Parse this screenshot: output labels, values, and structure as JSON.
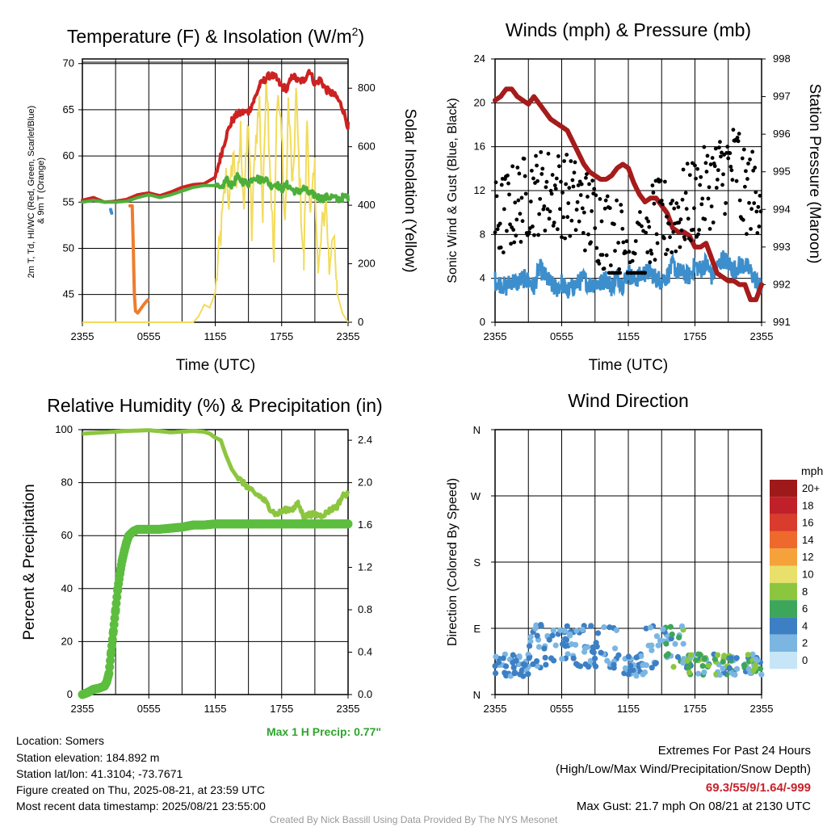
{
  "charts": {
    "temp": {
      "title": "Temperature (F) & Insolation (W/m²)",
      "ylabel_line1": "2m T, Td, HI/WC (Red, Green, Scarlet/Blue)",
      "ylabel_line2": "& 9m T (Orange)",
      "y2label": "Solar Insolation (Yellow)",
      "xlabel": "Time (UTC)"
    },
    "wind": {
      "title": "Winds (mph) & Pressure (mb)",
      "ylabel": "Sonic Wind & Gust (Blue, Black)",
      "y2label": "Station Pressure (Maroon)",
      "xlabel": "Time (UTC)"
    },
    "rh": {
      "title": "Relative Humidity (%) & Precipitation (in)",
      "ylabel": "Percent & Precipitation",
      "max_precip": "Max 1 H Precip: 0.77\""
    },
    "dir": {
      "title": "Wind Direction",
      "ylabel": "Direction (Colored By Speed)",
      "legend_title": "mph"
    }
  },
  "info": {
    "location": "Location: Somers",
    "elevation": "Station elevation: 184.892 m",
    "latlon": "Station lat/lon: 41.3104; -73.7671",
    "created": "Figure created on Thu, 2025-08-21, at 23:59 UTC",
    "recent": "Most recent data timestamp: 2025/08/21 23:55:00"
  },
  "extremes": {
    "title": "Extremes For Past 24 Hours",
    "subtitle": "(High/Low/Max Wind/Precipitation/Snow Depth)",
    "values": "69.3/55/9/1.64/-999",
    "gust": "Max Gust: 21.7 mph On 08/21 at 2130 UTC"
  },
  "credit": "Created By Nick Bassill Using Data Provided By The NYS Mesonet",
  "colors": {
    "temp": "#cc2222",
    "dewpoint": "#4caf3a",
    "heatindex_blue": "#3d8ecc",
    "temp9m": "#ee7d2d",
    "solar": "#f2dc5a",
    "sonic": "#3d8ecc",
    "gust": "#000000",
    "pressure": "#a61b1b",
    "rh": "#8cc63f",
    "precip": "#5cbd3f",
    "grid": "#000000"
  },
  "chart_data": [
    {
      "id": "temp",
      "type": "line",
      "x_ticks": [
        "2355",
        "0555",
        "1155",
        "1755",
        "2355"
      ],
      "x_range_hours": [
        0,
        24
      ],
      "ylim": [
        42,
        70.5
      ],
      "y_ticks": [
        45,
        50,
        55,
        60,
        65,
        70
      ],
      "y2lim": [
        0,
        900
      ],
      "y2_ticks": [
        0,
        200,
        400,
        600,
        800
      ],
      "series": [
        {
          "key": "temp",
          "x": [
            0,
            1,
            2,
            3,
            4,
            5,
            6,
            7,
            8,
            9,
            10,
            11,
            12,
            12.5,
            13,
            13.5,
            14,
            14.5,
            15,
            15.5,
            16,
            16.5,
            17,
            17.5,
            18,
            18.5,
            19,
            19.5,
            20,
            20.5,
            21,
            21.5,
            22,
            22.5,
            23,
            23.5,
            24
          ],
          "y": [
            55.2,
            55.5,
            55,
            55.1,
            55.3,
            55.8,
            56,
            55.7,
            56.1,
            56.6,
            56.9,
            57,
            57.7,
            60,
            62.2,
            63.8,
            64.5,
            64.7,
            64.8,
            66,
            67.6,
            68.3,
            68.8,
            68.4,
            67.5,
            67.3,
            68.7,
            68.1,
            68.2,
            69.3,
            67.8,
            68.3,
            67.2,
            66.8,
            66.3,
            65.2,
            63.2
          ]
        },
        {
          "key": "dewpoint",
          "x": [
            0,
            1,
            2,
            3,
            4,
            5,
            6,
            7,
            8,
            9,
            10,
            11,
            12,
            12.5,
            13,
            13.5,
            14,
            14.5,
            15,
            15.5,
            16,
            16.5,
            17,
            17.5,
            18,
            18.5,
            19,
            19.5,
            20,
            20.5,
            21,
            21.5,
            22,
            22.5,
            23,
            23.5,
            24
          ],
          "y": [
            55,
            55.2,
            55,
            55,
            55.1,
            55.5,
            55.8,
            55.5,
            55.8,
            56.2,
            56.6,
            56.8,
            56.8,
            56.3,
            57.5,
            56.8,
            57.7,
            57.2,
            57,
            57.8,
            57.4,
            57.6,
            56.8,
            57,
            56.4,
            56.9,
            56.3,
            56.1,
            56.5,
            55.9,
            55.8,
            55.4,
            55.5,
            55.6,
            55.3,
            55.5,
            55.6
          ]
        },
        {
          "key": "heatindex_blue",
          "x": [
            2.55,
            2.6,
            2.65
          ],
          "y": [
            54.2,
            54,
            53.8
          ]
        },
        {
          "key": "temp9m",
          "x": [
            4.3,
            4.4,
            4.5,
            4.6,
            4.7,
            4.8,
            5.0,
            5.3,
            5.6,
            5.9
          ],
          "y": [
            54.6,
            54.6,
            54.6,
            50,
            45,
            43.2,
            43,
            43.5,
            44,
            44.4
          ]
        }
      ],
      "solar": {
        "x": [
          0,
          10,
          10.5,
          11,
          11.5,
          12,
          12.5,
          13,
          13.3,
          13.6,
          14,
          14.3,
          14.6,
          15,
          15.3,
          15.6,
          16,
          16.3,
          16.6,
          17,
          17.3,
          17.6,
          18,
          18.3,
          18.6,
          19,
          19.3,
          19.6,
          20,
          20.3,
          20.6,
          21,
          21.3,
          21.6,
          22,
          22.3,
          22.6,
          23,
          23.5,
          24
        ],
        "y": [
          0,
          0,
          20,
          60,
          50,
          100,
          300,
          500,
          400,
          580,
          450,
          650,
          400,
          700,
          300,
          600,
          750,
          350,
          880,
          500,
          200,
          800,
          650,
          300,
          750,
          450,
          780,
          500,
          200,
          700,
          350,
          520,
          150,
          300,
          420,
          180,
          330,
          100,
          30,
          0
        ]
      }
    },
    {
      "id": "wind",
      "type": "line",
      "x_ticks": [
        "2355",
        "0555",
        "1155",
        "1755",
        "2355"
      ],
      "x_range_hours": [
        0,
        24
      ],
      "ylim": [
        0,
        24
      ],
      "y_ticks": [
        0,
        4,
        8,
        12,
        16,
        20,
        24
      ],
      "y2lim": [
        991,
        998
      ],
      "y2_ticks": [
        991,
        992,
        993,
        994,
        995,
        996,
        997,
        998
      ],
      "pressure": {
        "x": [
          0,
          0.5,
          1,
          1.5,
          2,
          2.5,
          3,
          3.5,
          4,
          4.5,
          5,
          5.5,
          6,
          6.5,
          7,
          7.5,
          8,
          8.5,
          9,
          9.5,
          10,
          10.5,
          11,
          11.5,
          12,
          12.5,
          13,
          13.5,
          14,
          14.5,
          15,
          15.5,
          16,
          16.5,
          17,
          17.5,
          18,
          18.5,
          19,
          19.5,
          20,
          20.5,
          21,
          21.5,
          22,
          22.5,
          23,
          23.5,
          24
        ],
        "y": [
          996.9,
          997,
          997.2,
          997.2,
          997,
          996.9,
          996.8,
          997,
          996.8,
          996.6,
          996.4,
          996.3,
          996.2,
          996.1,
          995.8,
          995.5,
          995.2,
          995,
          994.9,
          994.8,
          994.8,
          994.9,
          995.1,
          995.2,
          995.1,
          994.7,
          994.4,
          994.2,
          994.3,
          994.3,
          994.1,
          993.9,
          993.5,
          993.4,
          993.4,
          993.3,
          993,
          993,
          993.1,
          992.7,
          992.3,
          992.2,
          992.1,
          992.1,
          992,
          992,
          991.6,
          991.6,
          992
        ]
      },
      "sonic": {
        "x": [
          0,
          0.5,
          1,
          1.5,
          2,
          2.5,
          3,
          3.5,
          4,
          4.5,
          5,
          5.5,
          6,
          6.5,
          7,
          7.5,
          8,
          8.5,
          9,
          9.5,
          10,
          10.5,
          11,
          11.5,
          12,
          12.5,
          13,
          13.5,
          14,
          14.5,
          15,
          15.5,
          16,
          16.5,
          17,
          17.5,
          18,
          18.5,
          19,
          19.5,
          20,
          20.5,
          21,
          21.5,
          22,
          22.5,
          23,
          23.5,
          24
        ],
        "y": [
          3.8,
          3.5,
          3.2,
          3.8,
          3.6,
          4,
          3.8,
          3.2,
          5,
          4.2,
          3.5,
          3,
          3.6,
          2.8,
          3.2,
          3.6,
          4,
          3.4,
          3.6,
          3.5,
          4,
          3.2,
          4.2,
          3.4,
          4.6,
          3.8,
          4.2,
          4.5,
          4.6,
          4,
          3.8,
          4.2,
          5.2,
          4.6,
          4.4,
          4.2,
          5.2,
          4.8,
          5.4,
          4.2,
          5,
          5.8,
          5.4,
          4.8,
          5.2,
          5.2,
          4.6,
          3.8,
          3
        ]
      },
      "gust_sample_count": 320
    },
    {
      "id": "rh",
      "type": "line",
      "x_ticks": [
        "2355",
        "0555",
        "1155",
        "1755",
        "2355"
      ],
      "x_range_hours": [
        0,
        24
      ],
      "ylim": [
        0,
        100
      ],
      "y_ticks": [
        0,
        20,
        40,
        60,
        80,
        100
      ],
      "y2lim": [
        0,
        2.5
      ],
      "y2_ticks": [
        "0.0",
        "0.4",
        "0.8",
        "1.2",
        "1.6",
        "2.0",
        "2.4"
      ],
      "rh": {
        "x": [
          0,
          2,
          4,
          6,
          8,
          10,
          11,
          11.5,
          12,
          12.5,
          13,
          13.5,
          14,
          14.5,
          15,
          15.5,
          16,
          16.5,
          17,
          17.5,
          18,
          18.5,
          19,
          19.5,
          20,
          20.5,
          21,
          21.5,
          22,
          22.5,
          23,
          23.5,
          24
        ],
        "y": [
          98.5,
          99,
          99.5,
          99.8,
          99,
          99.5,
          99.2,
          98.5,
          97,
          96,
          90,
          85,
          82,
          80,
          78,
          76,
          75,
          73,
          70,
          68,
          69,
          70,
          70,
          72,
          67,
          68,
          68,
          67.5,
          68.5,
          70,
          71,
          75,
          76
        ]
      },
      "precip": {
        "x": [
          0,
          0.5,
          1,
          1.5,
          2,
          2.2,
          2.4,
          2.6,
          2.8,
          3,
          3.2,
          3.4,
          3.6,
          3.8,
          4,
          4.2,
          4.4,
          4.6,
          4.8,
          5,
          5.5,
          6,
          7,
          8,
          9,
          10,
          11,
          12,
          14,
          16,
          18,
          20,
          22,
          24
        ],
        "y": [
          0,
          0.02,
          0.05,
          0.06,
          0.08,
          0.12,
          0.2,
          0.4,
          0.6,
          0.8,
          1.0,
          1.15,
          1.27,
          1.36,
          1.44,
          1.5,
          1.52,
          1.54,
          1.55,
          1.56,
          1.56,
          1.56,
          1.56,
          1.57,
          1.58,
          1.6,
          1.6,
          1.61,
          1.61,
          1.61,
          1.61,
          1.61,
          1.61,
          1.61
        ]
      }
    },
    {
      "id": "dir",
      "type": "scatter",
      "x_ticks": [
        "2355",
        "0555",
        "1155",
        "1755",
        "2355"
      ],
      "x_range_hours": [
        0,
        24
      ],
      "y_ticks": [
        "N",
        "E",
        "S",
        "W",
        "N"
      ],
      "ylim_degrees": [
        0,
        360
      ],
      "legend": {
        "labels": [
          "20+",
          "18",
          "16",
          "14",
          "12",
          "10",
          "8",
          "6",
          "4",
          "2",
          "0"
        ],
        "colors": [
          "#9e1a1a",
          "#c0202a",
          "#d93b2c",
          "#ee6a2c",
          "#f5a23a",
          "#e8e06a",
          "#8cc63f",
          "#3ea65a",
          "#3d7fc4",
          "#7bb6e2",
          "#c6e6f7"
        ]
      },
      "sample_count": 300,
      "direction_range_degrees": [
        20,
        110
      ]
    }
  ]
}
